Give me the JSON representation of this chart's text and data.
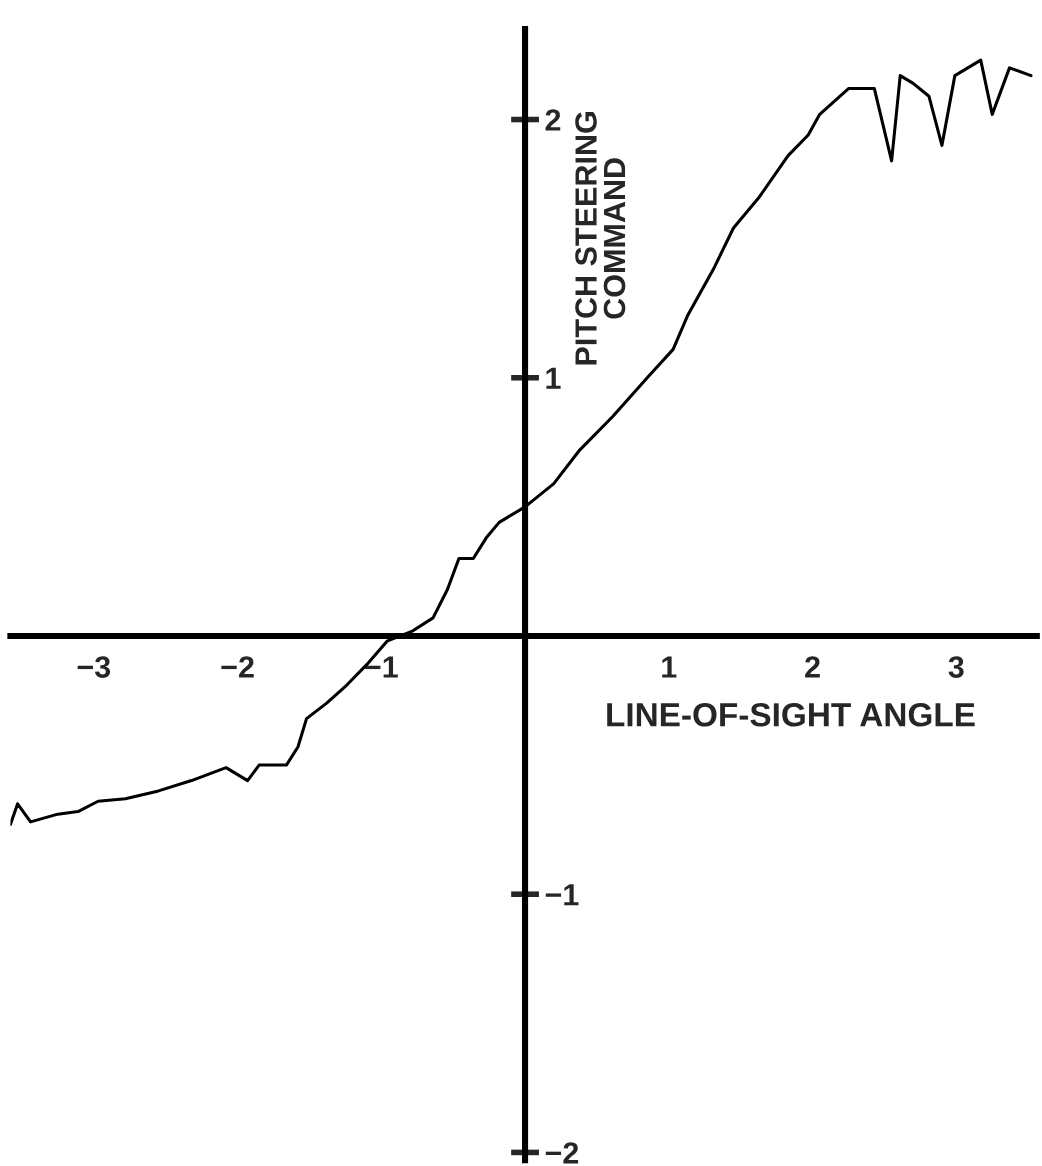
{
  "chart_data": {
    "type": "line",
    "xlabel": "LINE-OF-SIGHT ANGLE",
    "ylabel": "PITCH STEERING\nCOMMAND",
    "xlim": [
      -3.58,
      3.56
    ],
    "ylim": [
      -2.03,
      2.35
    ],
    "xticks": [
      {
        "value": -3,
        "label": "−3"
      },
      {
        "value": -2,
        "label": "−2"
      },
      {
        "value": -1,
        "label": "−1"
      },
      {
        "value": 1,
        "label": "1"
      },
      {
        "value": 2,
        "label": "2"
      },
      {
        "value": 3,
        "label": "3"
      }
    ],
    "yticks": [
      {
        "value": -2,
        "label": "−2"
      },
      {
        "value": -1,
        "label": "−1"
      },
      {
        "value": 1,
        "label": "1"
      },
      {
        "value": 2,
        "label": "2"
      }
    ],
    "grid": false,
    "legend": false,
    "marker": "none",
    "line_style": "solid",
    "series": [
      {
        "color": "#000000",
        "x": [
          -3.58,
          -3.53,
          -3.44,
          -3.25,
          -3.11,
          -2.97,
          -2.78,
          -2.55,
          -2.32,
          -2.08,
          -1.93,
          -1.85,
          -1.66,
          -1.58,
          -1.52,
          -1.38,
          -1.24,
          -1.1,
          -0.96,
          -0.78,
          -0.64,
          -0.54,
          -0.46,
          -0.36,
          -0.27,
          -0.18,
          0.0,
          0.2,
          0.38,
          0.61,
          0.85,
          1.03,
          1.13,
          1.31,
          1.45,
          1.63,
          1.83,
          1.97,
          2.05,
          2.25,
          2.43,
          2.55,
          2.61,
          2.7,
          2.81,
          2.9,
          2.99,
          3.17,
          3.25,
          3.37,
          3.52
        ],
        "values": [
          -0.73,
          -0.65,
          -0.72,
          -0.69,
          -0.68,
          -0.64,
          -0.63,
          -0.6,
          -0.56,
          -0.51,
          -0.56,
          -0.5,
          -0.5,
          -0.43,
          -0.32,
          -0.26,
          -0.19,
          -0.11,
          -0.02,
          0.02,
          0.07,
          0.18,
          0.3,
          0.3,
          0.38,
          0.44,
          0.5,
          0.59,
          0.72,
          0.85,
          1.0,
          1.11,
          1.24,
          1.42,
          1.58,
          1.7,
          1.86,
          1.94,
          2.02,
          2.12,
          2.12,
          1.84,
          2.17,
          2.14,
          2.09,
          1.9,
          2.17,
          2.23,
          2.02,
          2.2,
          2.17
        ]
      }
    ]
  }
}
